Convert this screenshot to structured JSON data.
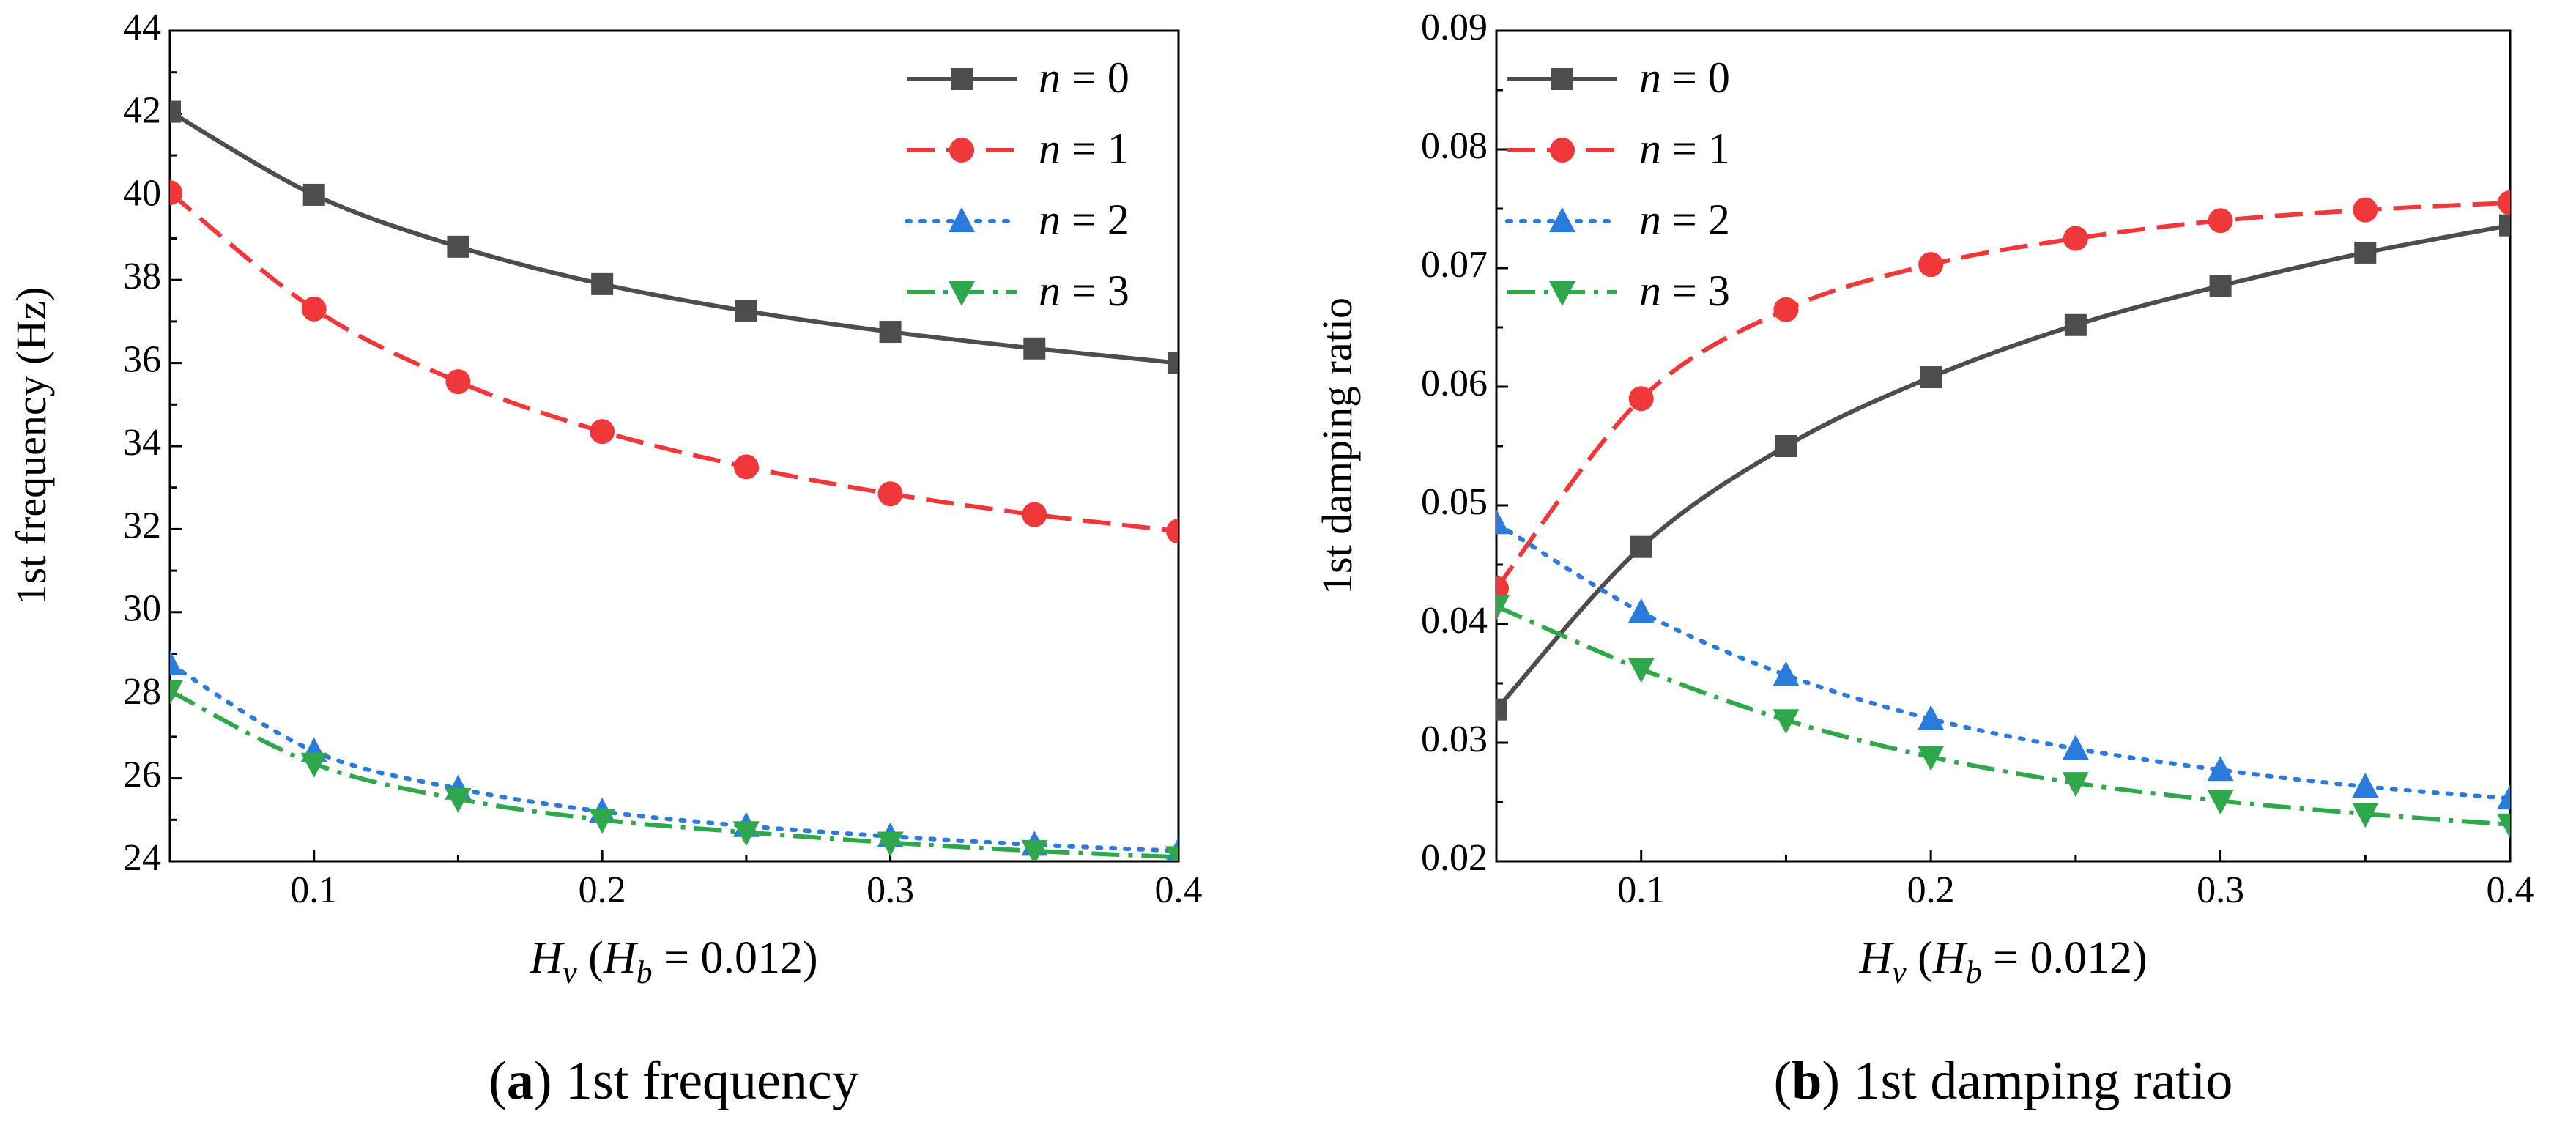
{
  "colors": {
    "n0": "#4d4d4d",
    "n1": "#f0383a",
    "n2": "#2b7bdc",
    "n3": "#2ea84a"
  },
  "chart_data": [
    {
      "type": "line",
      "id": "a",
      "caption_letter": "a",
      "caption_text": " 1st frequency",
      "ylabel": "1st frequency (Hz)",
      "xlabel_main": "H",
      "xlabel_sub": "v",
      "xlabel_mid": " (H",
      "xlabel_sub2": "b",
      "xlabel_tail": " = 0.012)",
      "xlim": [
        0.05,
        0.4
      ],
      "ylim": [
        24,
        44
      ],
      "x_ticks": [
        0.1,
        0.2,
        0.3,
        0.4
      ],
      "x_tick_labels": [
        "0.1",
        "0.2",
        "0.3",
        "0.4"
      ],
      "y_ticks": [
        24,
        26,
        28,
        30,
        32,
        34,
        36,
        38,
        40,
        42,
        44
      ],
      "y_tick_labels": [
        "24",
        "26",
        "28",
        "30",
        "32",
        "34",
        "36",
        "38",
        "40",
        "42",
        "44"
      ],
      "legend_position": "top-right",
      "x": [
        0.05,
        0.1,
        0.15,
        0.2,
        0.25,
        0.3,
        0.35,
        0.4
      ],
      "series": [
        {
          "name": "n = 0",
          "n_label": "n",
          "eq_label": " = 0",
          "marker": "square",
          "dash": "solid",
          "values": [
            42.05,
            40.05,
            38.8,
            37.9,
            37.25,
            36.75,
            36.35,
            36.0
          ]
        },
        {
          "name": "n = 1",
          "n_label": "n",
          "eq_label": " = 1",
          "marker": "circle",
          "dash": "dashed",
          "values": [
            40.1,
            37.3,
            35.55,
            34.35,
            33.5,
            32.85,
            32.35,
            31.95
          ]
        },
        {
          "name": "n = 2",
          "n_label": "n",
          "eq_label": " = 2",
          "marker": "triangle-up",
          "dash": "dotted",
          "values": [
            28.75,
            26.65,
            25.75,
            25.2,
            24.85,
            24.6,
            24.4,
            24.25
          ]
        },
        {
          "name": "n = 3",
          "n_label": "n",
          "eq_label": " = 3",
          "marker": "triangle-down",
          "dash": "dashdot",
          "values": [
            28.1,
            26.35,
            25.5,
            25.0,
            24.7,
            24.45,
            24.25,
            24.1
          ]
        }
      ]
    },
    {
      "type": "line",
      "id": "b",
      "caption_letter": "b",
      "caption_text": " 1st damping ratio",
      "ylabel": "1st damping ratio",
      "xlabel_main": "H",
      "xlabel_sub": "v",
      "xlabel_mid": " (H",
      "xlabel_sub2": "b",
      "xlabel_tail": " = 0.012)",
      "xlim": [
        0.05,
        0.4
      ],
      "ylim": [
        0.02,
        0.09
      ],
      "x_ticks": [
        0.1,
        0.2,
        0.3,
        0.4
      ],
      "x_tick_labels": [
        "0.1",
        "0.2",
        "0.3",
        "0.4"
      ],
      "y_ticks": [
        0.02,
        0.03,
        0.04,
        0.05,
        0.06,
        0.07,
        0.08,
        0.09
      ],
      "y_tick_labels": [
        "0.02",
        "0.03",
        "0.04",
        "0.05",
        "0.06",
        "0.07",
        "0.08",
        "0.09"
      ],
      "legend_position": "top-left",
      "x": [
        0.05,
        0.1,
        0.15,
        0.2,
        0.25,
        0.3,
        0.35,
        0.4
      ],
      "series": [
        {
          "name": "n = 0",
          "n_label": "n",
          "eq_label": " = 0",
          "marker": "square",
          "dash": "solid",
          "values": [
            0.0328,
            0.0465,
            0.055,
            0.0608,
            0.0652,
            0.0685,
            0.0713,
            0.0736
          ]
        },
        {
          "name": "n = 1",
          "n_label": "n",
          "eq_label": " = 1",
          "marker": "circle",
          "dash": "dashed",
          "values": [
            0.043,
            0.059,
            0.0665,
            0.0703,
            0.0725,
            0.074,
            0.0749,
            0.0755
          ]
        },
        {
          "name": "n = 2",
          "n_label": "n",
          "eq_label": " = 2",
          "marker": "triangle-up",
          "dash": "dotted",
          "values": [
            0.0485,
            0.041,
            0.0357,
            0.032,
            0.0295,
            0.0277,
            0.0263,
            0.0253
          ]
        },
        {
          "name": "n = 3",
          "n_label": "n",
          "eq_label": " = 3",
          "marker": "triangle-down",
          "dash": "dashdot",
          "values": [
            0.0415,
            0.0362,
            0.0319,
            0.0288,
            0.0266,
            0.0251,
            0.024,
            0.0231
          ]
        }
      ]
    }
  ]
}
